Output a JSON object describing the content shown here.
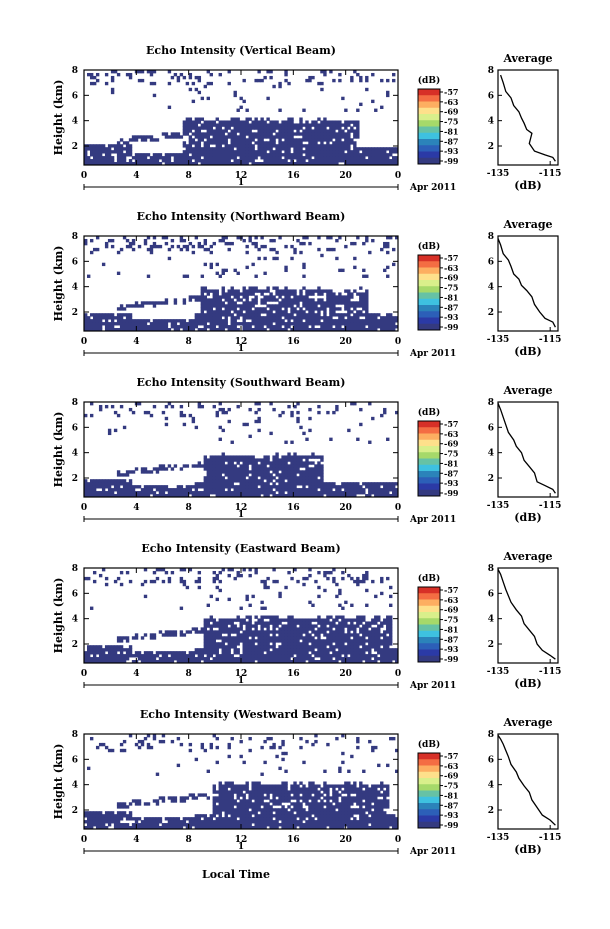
{
  "figure": {
    "x_axis_label": "Local Time",
    "date_label": "Apr 2011",
    "date_bar_label": "1",
    "colorbar_unit": "(dB)",
    "colorbar_ticks": [
      "-57",
      "-63",
      "-69",
      "-75",
      "-81",
      "-87",
      "-93",
      "-99"
    ],
    "colorbar_colors": [
      "#d73027",
      "#f46d43",
      "#fdae61",
      "#fee08b",
      "#d9ef8b",
      "#a6d96a",
      "#66c2a5",
      "#3ec1e0",
      "#2b83ba",
      "#2c5fb8",
      "#2b3aa6",
      "#343a80"
    ],
    "fill_color": "#343a80",
    "profile_title": "Average",
    "profile_xlabel": "(dB)"
  },
  "chart_data": [
    {
      "type": "heatmap",
      "title": "Echo Intensity (Vertical Beam)",
      "ylabel": "Height (km)",
      "x_ticks": [
        "0",
        "4",
        "8",
        "12",
        "16",
        "20",
        "0"
      ],
      "y_ticks": [
        "2",
        "4",
        "6",
        "8"
      ],
      "xlim": [
        0,
        24
      ],
      "ylim": [
        0.5,
        8
      ],
      "units": "dB",
      "colorbar_range": [
        -99,
        -57
      ],
      "profile": {
        "title": "Average",
        "xlabel": "(dB)",
        "x_ticks": [
          "-135",
          "-115"
        ],
        "y_ticks": [
          "2",
          "4",
          "6",
          "8"
        ],
        "xlim": [
          -135,
          -112
        ],
        "ylim": [
          0.5,
          8
        ],
        "points": [
          [
            -113,
            0.8
          ],
          [
            -114,
            1.1
          ],
          [
            -117,
            1.3
          ],
          [
            -121,
            1.6
          ],
          [
            -123,
            2.2
          ],
          [
            -122,
            3.0
          ],
          [
            -124,
            3.3
          ],
          [
            -125,
            3.8
          ],
          [
            -126,
            4.2
          ],
          [
            -127,
            4.7
          ],
          [
            -129,
            5.2
          ],
          [
            -130,
            5.8
          ],
          [
            -132,
            6.3
          ],
          [
            -133,
            7.0
          ],
          [
            -134,
            7.6
          ]
        ]
      }
    },
    {
      "type": "heatmap",
      "title": "Echo Intensity (Northward Beam)",
      "ylabel": "Height (km)",
      "x_ticks": [
        "0",
        "4",
        "8",
        "12",
        "16",
        "20",
        "0"
      ],
      "y_ticks": [
        "2",
        "4",
        "6",
        "8"
      ],
      "xlim": [
        0,
        24
      ],
      "ylim": [
        0.5,
        8
      ],
      "units": "dB",
      "colorbar_range": [
        -99,
        -57
      ],
      "profile": {
        "title": "Average",
        "xlabel": "(dB)",
        "x_ticks": [
          "-135",
          "-115"
        ],
        "y_ticks": [
          "2",
          "4",
          "6",
          "8"
        ],
        "xlim": [
          -135,
          -112
        ],
        "ylim": [
          0.5,
          8
        ],
        "points": [
          [
            -113,
            0.8
          ],
          [
            -114,
            1.2
          ],
          [
            -117,
            1.5
          ],
          [
            -119,
            2.0
          ],
          [
            -121,
            2.6
          ],
          [
            -122,
            3.2
          ],
          [
            -124,
            3.7
          ],
          [
            -126,
            4.1
          ],
          [
            -127,
            4.6
          ],
          [
            -129,
            5.0
          ],
          [
            -130,
            5.6
          ],
          [
            -131,
            6.1
          ],
          [
            -133,
            6.6
          ],
          [
            -134,
            7.3
          ],
          [
            -135,
            7.8
          ]
        ]
      }
    },
    {
      "type": "heatmap",
      "title": "Echo Intensity (Southward Beam)",
      "ylabel": "Height (km)",
      "x_ticks": [
        "0",
        "4",
        "8",
        "12",
        "16",
        "20",
        "0"
      ],
      "y_ticks": [
        "2",
        "4",
        "6",
        "8"
      ],
      "xlim": [
        0,
        24
      ],
      "ylim": [
        0.5,
        8
      ],
      "units": "dB",
      "colorbar_range": [
        -99,
        -57
      ],
      "profile": {
        "title": "Average",
        "xlabel": "(dB)",
        "x_ticks": [
          "-135",
          "-115"
        ],
        "y_ticks": [
          "2",
          "4",
          "6",
          "8"
        ],
        "xlim": [
          -135,
          -112
        ],
        "ylim": [
          0.5,
          8
        ],
        "points": [
          [
            -113,
            0.8
          ],
          [
            -114,
            1.1
          ],
          [
            -117,
            1.4
          ],
          [
            -120,
            1.7
          ],
          [
            -121,
            2.4
          ],
          [
            -123,
            2.9
          ],
          [
            -125,
            3.4
          ],
          [
            -126,
            4.0
          ],
          [
            -128,
            4.5
          ],
          [
            -129,
            5.0
          ],
          [
            -131,
            5.6
          ],
          [
            -132,
            6.2
          ],
          [
            -133,
            6.8
          ],
          [
            -134,
            7.4
          ],
          [
            -135,
            7.9
          ]
        ]
      }
    },
    {
      "type": "heatmap",
      "title": "Echo Intensity (Eastward Beam)",
      "ylabel": "Height (km)",
      "x_ticks": [
        "0",
        "4",
        "8",
        "12",
        "16",
        "20",
        "0"
      ],
      "y_ticks": [
        "2",
        "4",
        "6",
        "8"
      ],
      "xlim": [
        0,
        24
      ],
      "ylim": [
        0.5,
        8
      ],
      "units": "dB",
      "colorbar_range": [
        -99,
        -57
      ],
      "profile": {
        "title": "Average",
        "xlabel": "(dB)",
        "x_ticks": [
          "-135",
          "-115"
        ],
        "y_ticks": [
          "2",
          "4",
          "6",
          "8"
        ],
        "xlim": [
          -135,
          -112
        ],
        "ylim": [
          0.5,
          8
        ],
        "points": [
          [
            -113,
            0.8
          ],
          [
            -115,
            1.1
          ],
          [
            -118,
            1.5
          ],
          [
            -120,
            2.0
          ],
          [
            -121,
            2.6
          ],
          [
            -123,
            3.1
          ],
          [
            -125,
            3.6
          ],
          [
            -126,
            4.2
          ],
          [
            -128,
            4.7
          ],
          [
            -130,
            5.3
          ],
          [
            -131,
            5.8
          ],
          [
            -132,
            6.3
          ],
          [
            -133,
            6.9
          ],
          [
            -134,
            7.5
          ],
          [
            -135,
            7.9
          ]
        ]
      }
    },
    {
      "type": "heatmap",
      "title": "Echo Intensity (Westward Beam)",
      "ylabel": "Height (km)",
      "x_ticks": [
        "0",
        "4",
        "8",
        "12",
        "16",
        "20",
        "0"
      ],
      "y_ticks": [
        "2",
        "4",
        "6",
        "8"
      ],
      "xlim": [
        0,
        24
      ],
      "ylim": [
        0.5,
        8
      ],
      "units": "dB",
      "colorbar_range": [
        -99,
        -57
      ],
      "profile": {
        "title": "Average",
        "xlabel": "(dB)",
        "x_ticks": [
          "-135",
          "-115"
        ],
        "y_ticks": [
          "2",
          "4",
          "6",
          "8"
        ],
        "xlim": [
          -135,
          -112
        ],
        "ylim": [
          0.5,
          8
        ],
        "points": [
          [
            -113,
            0.8
          ],
          [
            -115,
            1.2
          ],
          [
            -118,
            1.6
          ],
          [
            -120,
            2.2
          ],
          [
            -122,
            2.8
          ],
          [
            -123,
            3.4
          ],
          [
            -125,
            3.9
          ],
          [
            -127,
            4.5
          ],
          [
            -128,
            5.0
          ],
          [
            -130,
            5.6
          ],
          [
            -131,
            6.2
          ],
          [
            -132,
            6.7
          ],
          [
            -133,
            7.2
          ],
          [
            -134,
            7.6
          ],
          [
            -135,
            7.9
          ]
        ]
      }
    }
  ]
}
